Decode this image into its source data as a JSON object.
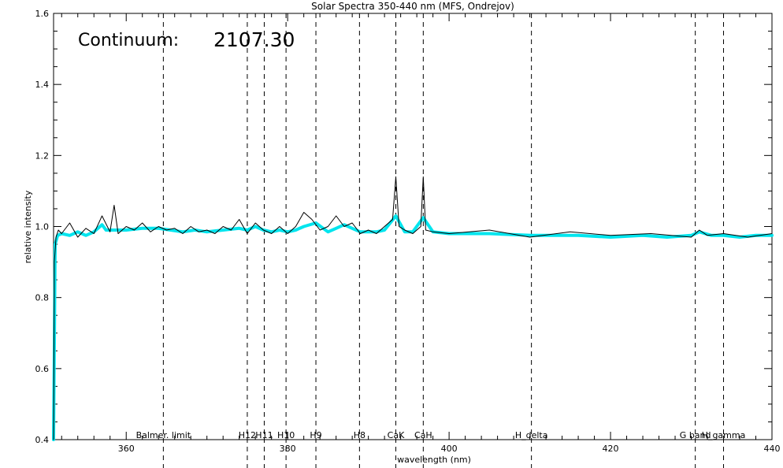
{
  "chart_data": {
    "type": "line",
    "title": "Solar Spectra 350-440 nm (MFS, Ondrejov)",
    "xlabel": "wavelength (nm)",
    "ylabel": "relative intensity",
    "xlim": [
      351,
      440
    ],
    "ylim": [
      0.4,
      1.6
    ],
    "x_ticks": [
      {
        "value": 360,
        "label": "360"
      },
      {
        "value": 380,
        "label": "380"
      },
      {
        "value": 400,
        "label": "400"
      },
      {
        "value": 420,
        "label": "420"
      },
      {
        "value": 440,
        "label": "440"
      }
    ],
    "y_ticks": [
      {
        "value": 0.4,
        "label": "0.4"
      },
      {
        "value": 0.6,
        "label": "0.6"
      },
      {
        "value": 0.8,
        "label": "0.8"
      },
      {
        "value": 1.0,
        "label": "1.0"
      },
      {
        "value": 1.2,
        "label": "1.2"
      },
      {
        "value": 1.4,
        "label": "1.4"
      },
      {
        "value": 1.6,
        "label": "1.6"
      }
    ],
    "annotations": [
      {
        "text": "Continuum:",
        "value": "2107.30"
      }
    ],
    "spectral_lines": [
      {
        "label": "Balmer. limit",
        "x": 364.6
      },
      {
        "label": "H12",
        "x": 375.0
      },
      {
        "label": "H11",
        "x": 377.1
      },
      {
        "label": "H10",
        "x": 379.8
      },
      {
        "label": "H9",
        "x": 383.5
      },
      {
        "label": "H8",
        "x": 388.9
      },
      {
        "label": "CaK",
        "x": 393.4
      },
      {
        "label": "CaH",
        "x": 396.8
      },
      {
        "label": "H_delta",
        "x": 410.2
      },
      {
        "label": "G band",
        "x": 430.5
      },
      {
        "label": "H_gamma",
        "x": 434.0
      }
    ],
    "series": [
      {
        "color": "#00e5ee",
        "x": [
          351.0,
          351.2,
          351.5,
          352.0,
          353.0,
          354.0,
          355.0,
          356.0,
          357.0,
          357.5,
          358.5,
          360.0,
          362.0,
          364.0,
          365.5,
          367.0,
          368.5,
          370.0,
          372.0,
          374.0,
          375.0,
          376.0,
          377.0,
          378.0,
          379.0,
          380.0,
          381.0,
          382.0,
          383.5,
          385.0,
          386.0,
          387.0,
          388.0,
          389.0,
          390.0,
          391.0,
          392.0,
          393.4,
          394.5,
          395.5,
          396.8,
          398.0,
          400.0,
          405.0,
          410.2,
          413.0,
          416.0,
          420.0,
          424.0,
          427.0,
          430.0,
          431.0,
          432.5,
          434.0,
          436.0,
          438.0,
          440.0
        ],
        "y": [
          0.4,
          0.95,
          0.975,
          0.98,
          0.975,
          0.985,
          0.975,
          0.985,
          1.005,
          0.99,
          0.99,
          0.99,
          0.995,
          0.995,
          0.99,
          0.985,
          0.99,
          0.985,
          0.99,
          0.995,
          0.99,
          1.0,
          0.99,
          0.985,
          0.99,
          0.985,
          0.99,
          1.0,
          1.01,
          0.985,
          0.995,
          1.005,
          0.995,
          0.985,
          0.985,
          0.985,
          0.99,
          1.03,
          0.985,
          0.985,
          1.025,
          0.985,
          0.98,
          0.98,
          0.975,
          0.975,
          0.975,
          0.97,
          0.975,
          0.97,
          0.975,
          0.985,
          0.975,
          0.975,
          0.97,
          0.975,
          0.975
        ]
      },
      {
        "color": "#000000",
        "x": [
          351.0,
          351.1,
          351.3,
          351.6,
          352.0,
          353.0,
          354.0,
          355.0,
          356.0,
          357.0,
          358.0,
          358.5,
          359.0,
          360.0,
          361.0,
          362.0,
          363.0,
          364.0,
          365.0,
          366.0,
          367.0,
          368.0,
          369.0,
          370.0,
          371.0,
          372.0,
          373.0,
          374.0,
          375.0,
          376.0,
          377.0,
          378.0,
          379.0,
          380.0,
          381.0,
          382.0,
          383.0,
          384.0,
          385.0,
          386.0,
          387.0,
          388.0,
          389.0,
          390.0,
          391.0,
          392.0,
          393.0,
          393.4,
          393.8,
          394.5,
          395.5,
          396.5,
          396.8,
          397.1,
          398.0,
          400.0,
          405.0,
          410.0,
          415.0,
          420.0,
          425.0,
          430.0,
          431.0,
          432.0,
          434.0,
          437.0,
          440.0
        ],
        "y": [
          0.4,
          0.9,
          0.97,
          0.99,
          0.98,
          1.01,
          0.97,
          0.995,
          0.98,
          1.03,
          0.985,
          1.06,
          0.98,
          1.0,
          0.99,
          1.01,
          0.985,
          1.0,
          0.99,
          0.995,
          0.98,
          1.0,
          0.985,
          0.99,
          0.98,
          1.0,
          0.99,
          1.02,
          0.98,
          1.01,
          0.99,
          0.98,
          1.0,
          0.98,
          1.0,
          1.04,
          1.02,
          0.99,
          1.0,
          1.03,
          1.0,
          1.01,
          0.98,
          0.99,
          0.98,
          1.0,
          1.02,
          1.14,
          1.0,
          0.99,
          0.98,
          1.0,
          1.14,
          0.99,
          0.985,
          0.98,
          0.99,
          0.97,
          0.985,
          0.975,
          0.98,
          0.97,
          0.99,
          0.975,
          0.98,
          0.97,
          0.98
        ]
      }
    ]
  }
}
